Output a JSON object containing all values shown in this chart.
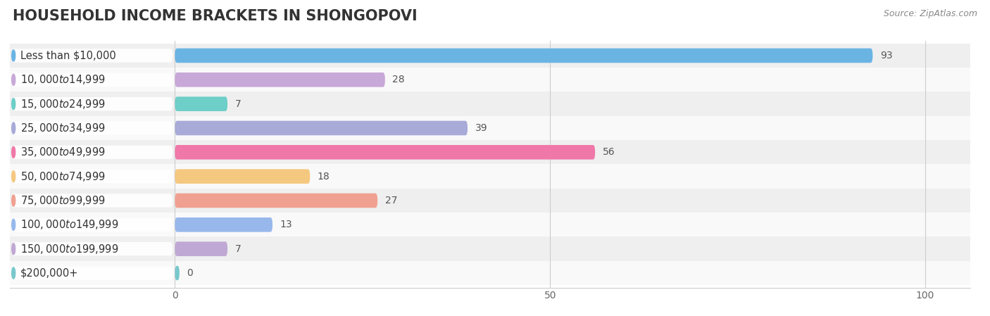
{
  "title": "HOUSEHOLD INCOME BRACKETS IN SHONGOPOVI",
  "source": "Source: ZipAtlas.com",
  "categories": [
    "Less than $10,000",
    "$10,000 to $14,999",
    "$15,000 to $24,999",
    "$25,000 to $34,999",
    "$35,000 to $49,999",
    "$50,000 to $74,999",
    "$75,000 to $99,999",
    "$100,000 to $149,999",
    "$150,000 to $199,999",
    "$200,000+"
  ],
  "values": [
    93,
    28,
    7,
    39,
    56,
    18,
    27,
    13,
    7,
    0
  ],
  "bar_colors": [
    "#6ab4e4",
    "#c8a8d8",
    "#6ecec8",
    "#a8aad8",
    "#f078a8",
    "#f5c880",
    "#f0a090",
    "#98b8ec",
    "#c0a8d4",
    "#78c8cc"
  ],
  "xlim_data": 100,
  "xticks": [
    0,
    50,
    100
  ],
  "title_fontsize": 15,
  "label_fontsize": 10.5,
  "value_fontsize": 10,
  "bar_height": 0.6,
  "row_even_color": "#efefef",
  "row_odd_color": "#f9f9f9",
  "grid_color": "#cccccc",
  "label_pill_color": "#ffffff",
  "label_pill_alpha": 0.93
}
